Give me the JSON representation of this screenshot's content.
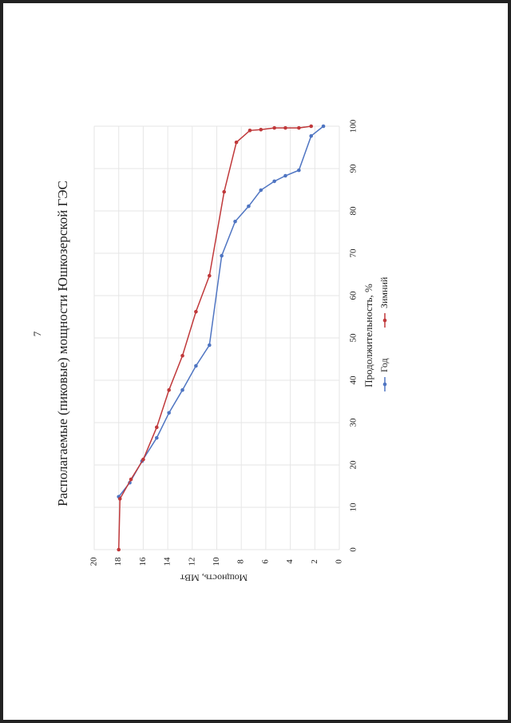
{
  "page_number": "7",
  "chart_data": {
    "type": "line",
    "title": "Располагаемые (пиковые) мощности Юшкозерской ГЭС",
    "x_label": "Продолжительность, %",
    "y_label": "Мощность, МВт",
    "xlim": [
      0,
      100
    ],
    "xticks": [
      0,
      10,
      20,
      30,
      40,
      50,
      60,
      70,
      80,
      90,
      100
    ],
    "ylim": [
      0,
      20
    ],
    "yticks": [
      0,
      2,
      4,
      6,
      8,
      10,
      12,
      14,
      16,
      18,
      20
    ],
    "grid": true,
    "series": [
      {
        "name": "Год",
        "color": "#4f75c2",
        "x": [
          12.5,
          15.8,
          20.9,
          26.4,
          32.3,
          37.7,
          43.4,
          48.3,
          69.4,
          77.5,
          81.1,
          84.9,
          87,
          88.3,
          89.6,
          97.7,
          100
        ],
        "values": [
          18,
          17.1,
          16.1,
          14.9,
          13.9,
          12.8,
          11.7,
          10.6,
          9.6,
          8.5,
          7.4,
          6.4,
          5.3,
          4.4,
          3.3,
          2.3,
          1.3
        ]
      },
      {
        "name": "Зимний",
        "color": "#c0393b",
        "x": [
          0,
          12,
          16.6,
          21.3,
          28.9,
          37.7,
          45.8,
          56.2,
          64.7,
          84.5,
          96.2,
          99,
          99.2,
          99.6,
          99.6,
          99.6,
          100
        ],
        "values": [
          18,
          17.9,
          17,
          16,
          14.9,
          13.9,
          12.8,
          11.7,
          10.6,
          9.4,
          8.4,
          7.3,
          6.4,
          5.3,
          4.4,
          3.3,
          2.3
        ]
      }
    ]
  }
}
